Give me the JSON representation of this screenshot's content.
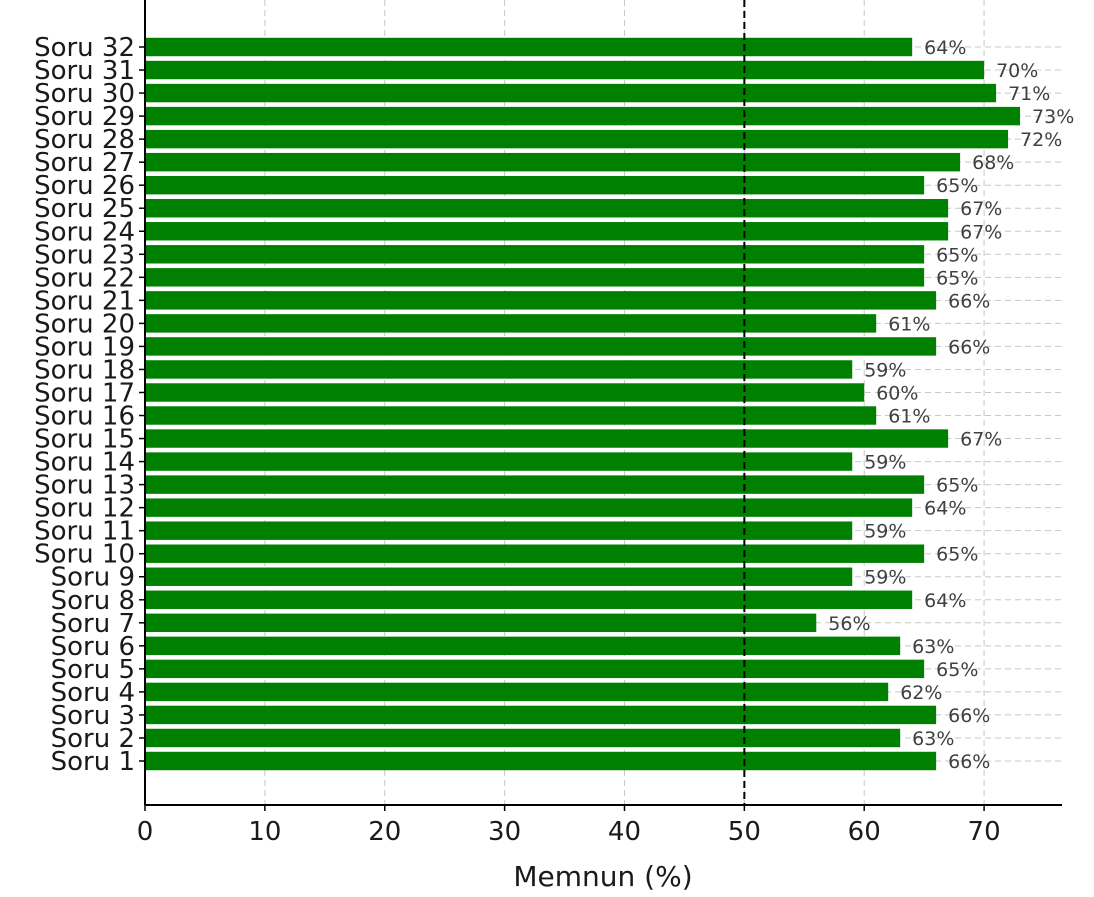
{
  "chart_data": {
    "type": "bar",
    "orientation": "horizontal",
    "categories": [
      "Soru 1",
      "Soru 2",
      "Soru 3",
      "Soru 4",
      "Soru 5",
      "Soru 6",
      "Soru 7",
      "Soru 8",
      "Soru 9",
      "Soru 10",
      "Soru 11",
      "Soru 12",
      "Soru 13",
      "Soru 14",
      "Soru 15",
      "Soru 16",
      "Soru 17",
      "Soru 18",
      "Soru 19",
      "Soru 20",
      "Soru 21",
      "Soru 22",
      "Soru 23",
      "Soru 24",
      "Soru 25",
      "Soru 26",
      "Soru 27",
      "Soru 28",
      "Soru 29",
      "Soru 30",
      "Soru 31",
      "Soru 32"
    ],
    "values": [
      66,
      63,
      66,
      62,
      65,
      63,
      56,
      64,
      59,
      65,
      59,
      64,
      65,
      59,
      67,
      61,
      60,
      59,
      66,
      61,
      66,
      65,
      65,
      67,
      67,
      65,
      68,
      72,
      73,
      71,
      70,
      64
    ],
    "data_labels": [
      "66%",
      "63%",
      "66%",
      "62%",
      "65%",
      "63%",
      "56%",
      "64%",
      "59%",
      "65%",
      "59%",
      "64%",
      "65%",
      "59%",
      "67%",
      "61%",
      "60%",
      "59%",
      "66%",
      "61%",
      "66%",
      "65%",
      "65%",
      "67%",
      "67%",
      "65%",
      "68%",
      "72%",
      "73%",
      "71%",
      "70%",
      "64%"
    ],
    "title": "",
    "xlabel": "Memnun (%)",
    "ylabel": "",
    "xlim": [
      0,
      76.5
    ],
    "xticks": [
      0,
      10,
      20,
      30,
      40,
      50,
      60,
      70
    ],
    "xtick_labels": [
      "0",
      "10",
      "20",
      "30",
      "40",
      "50",
      "60",
      "70"
    ],
    "reference_line": {
      "value": 50,
      "style": "dashed",
      "color": "#000000"
    },
    "grid": true,
    "grid_style": "dashed",
    "bar_color": "#008000"
  }
}
